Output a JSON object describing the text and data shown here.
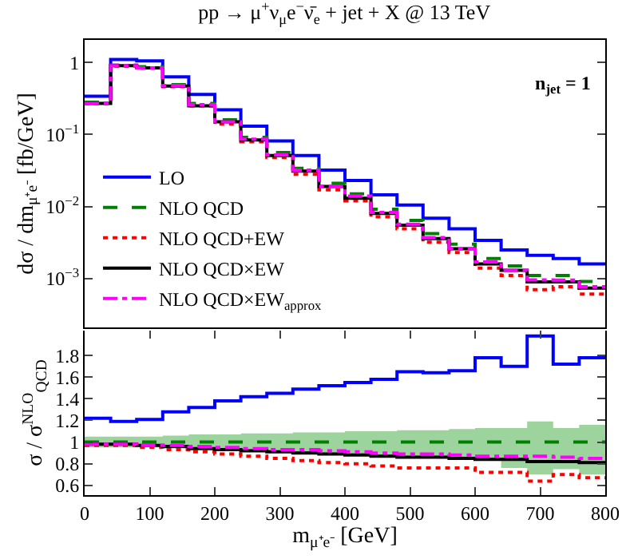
{
  "chart_data": [
    {
      "type": "step",
      "title": "pp → μ$^{+}$ν$_{μ}$e$^{−}$ν̄$_{e}$ + jet + X @ 13 TeV",
      "ylabel": "dσ / dm$_{μ⁺e⁻}$ [fb/GeV]",
      "annotations": [
        "n$_{jet}$ = 1"
      ],
      "x": [
        0,
        40,
        80,
        120,
        160,
        200,
        240,
        280,
        320,
        360,
        400,
        440,
        480,
        520,
        560,
        600,
        640,
        680,
        720,
        760,
        800
      ],
      "xlim": [
        0,
        800
      ],
      "ylim": [
        0.00021,
        2.05
      ],
      "log": true,
      "yticks": [
        {
          "value": 0.001,
          "label": "10$^{−3}$"
        },
        {
          "value": 0.01,
          "label": "10$^{−2}$"
        },
        {
          "value": 0.1,
          "label": "10$^{−1}$"
        },
        {
          "value": 1,
          "label": "1"
        }
      ],
      "tick_labels": "y",
      "grid": false,
      "legend": "bottom left",
      "marker": "none",
      "series": [
        {
          "name": "LO",
          "color": "#0000ff",
          "line_style": "solid",
          "values": [
            0.34,
            1.1,
            1.05,
            0.63,
            0.36,
            0.22,
            0.13,
            0.081,
            0.051,
            0.032,
            0.023,
            0.0145,
            0.0105,
            0.0069,
            0.0049,
            0.0034,
            0.0025,
            0.0021,
            0.0019,
            0.0016,
            0.0016
          ]
        },
        {
          "name": "NLO QCD",
          "color": "#008000",
          "line_style": "dashed",
          "values": [
            0.28,
            0.92,
            0.87,
            0.49,
            0.27,
            0.16,
            0.091,
            0.056,
            0.034,
            0.021,
            0.015,
            0.0092,
            0.0064,
            0.0042,
            0.003,
            0.0019,
            0.0015,
            0.0011,
            0.0011,
            0.00091,
            0.00091
          ]
        },
        {
          "name": "NLO QCD+EW",
          "color": "#ff0000",
          "line_style": "dotted",
          "values": [
            0.27,
            0.89,
            0.83,
            0.46,
            0.25,
            0.14,
            0.079,
            0.048,
            0.028,
            0.017,
            0.012,
            0.0072,
            0.0049,
            0.0032,
            0.0023,
            0.0014,
            0.0011,
            0.0007,
            0.00077,
            0.00061,
            0.00061
          ]
        },
        {
          "name": "NLO QCD×EW",
          "color": "#000000",
          "line_style": "solid",
          "values": [
            0.27,
            0.9,
            0.84,
            0.47,
            0.25,
            0.15,
            0.084,
            0.051,
            0.031,
            0.019,
            0.013,
            0.008,
            0.0055,
            0.0036,
            0.0026,
            0.0016,
            0.0013,
            0.0009,
            0.0009,
            0.00074,
            0.00074
          ]
        },
        {
          "name": "NLO QCD×EW$_{approx}$",
          "color": "#ff00ff",
          "line_style": "dashdot",
          "values": [
            0.27,
            0.9,
            0.84,
            0.48,
            0.26,
            0.15,
            0.086,
            0.052,
            0.032,
            0.019,
            0.014,
            0.0083,
            0.0057,
            0.0037,
            0.0026,
            0.0017,
            0.0013,
            0.00096,
            0.00095,
            0.00077,
            0.00077
          ]
        }
      ]
    },
    {
      "type": "step",
      "xlabel": "m$_{μ⁺e⁻}$ [GeV]",
      "ylabel": "σ / σ$^{NLO}$$_{QCD}$",
      "x": [
        0,
        40,
        80,
        120,
        160,
        200,
        240,
        280,
        320,
        360,
        400,
        440,
        480,
        520,
        560,
        600,
        640,
        680,
        720,
        760,
        800
      ],
      "xlim": [
        0,
        800
      ],
      "xticks": [
        0,
        100,
        200,
        300,
        400,
        500,
        600,
        700,
        800
      ],
      "ylim": [
        0.51,
        2.03
      ],
      "yticks": [
        {
          "value": 0.6,
          "label": "0.6"
        },
        {
          "value": 0.8,
          "label": "0.8"
        },
        1,
        {
          "value": 1.2,
          "label": "1.2"
        },
        {
          "value": 1.4,
          "label": "1.4"
        },
        {
          "value": 1.6,
          "label": "1.6"
        },
        {
          "value": 1.8,
          "label": "1.8"
        }
      ],
      "grid": false,
      "legend": false,
      "marker": "none",
      "series": [
        {
          "color": "#0000ff",
          "line_style": "solid",
          "values": [
            1.22,
            1.19,
            1.21,
            1.28,
            1.32,
            1.38,
            1.42,
            1.45,
            1.49,
            1.52,
            1.55,
            1.58,
            1.65,
            1.64,
            1.66,
            1.78,
            1.7,
            1.98,
            1.72,
            1.78,
            1.78
          ]
        },
        {
          "color": "#008000",
          "line_style": "dashed",
          "values": [
            1,
            1,
            1,
            1,
            1,
            1,
            1,
            1,
            1,
            1,
            1,
            1,
            1,
            1,
            1,
            1,
            1,
            1,
            1,
            1,
            1
          ],
          "lower": [
            0.95,
            0.95,
            0.95,
            0.94,
            0.93,
            0.92,
            0.91,
            0.9,
            0.9,
            0.89,
            0.89,
            0.88,
            0.87,
            0.87,
            0.86,
            0.84,
            0.76,
            0.7,
            0.75,
            0.7,
            0.7
          ],
          "upper": [
            1.05,
            1.05,
            1.05,
            1.06,
            1.07,
            1.07,
            1.08,
            1.08,
            1.09,
            1.09,
            1.1,
            1.1,
            1.11,
            1.11,
            1.12,
            1.13,
            1.13,
            1.19,
            1.13,
            1.16,
            1.16
          ]
        },
        {
          "color": "#ff0000",
          "line_style": "dotted",
          "values": [
            0.97,
            0.97,
            0.95,
            0.93,
            0.91,
            0.89,
            0.87,
            0.85,
            0.83,
            0.81,
            0.8,
            0.78,
            0.76,
            0.76,
            0.76,
            0.72,
            0.72,
            0.64,
            0.7,
            0.67,
            0.67
          ]
        },
        {
          "color": "#000000",
          "line_style": "solid",
          "values": [
            0.98,
            0.98,
            0.97,
            0.96,
            0.94,
            0.93,
            0.92,
            0.91,
            0.9,
            0.89,
            0.88,
            0.87,
            0.86,
            0.86,
            0.85,
            0.84,
            0.84,
            0.82,
            0.82,
            0.81,
            0.81
          ]
        },
        {
          "color": "#ff00ff",
          "line_style": "dashdot",
          "values": [
            0.98,
            0.98,
            0.97,
            0.97,
            0.96,
            0.95,
            0.94,
            0.93,
            0.93,
            0.92,
            0.91,
            0.9,
            0.89,
            0.89,
            0.88,
            0.87,
            0.87,
            0.87,
            0.86,
            0.85,
            0.85
          ]
        }
      ]
    }
  ]
}
